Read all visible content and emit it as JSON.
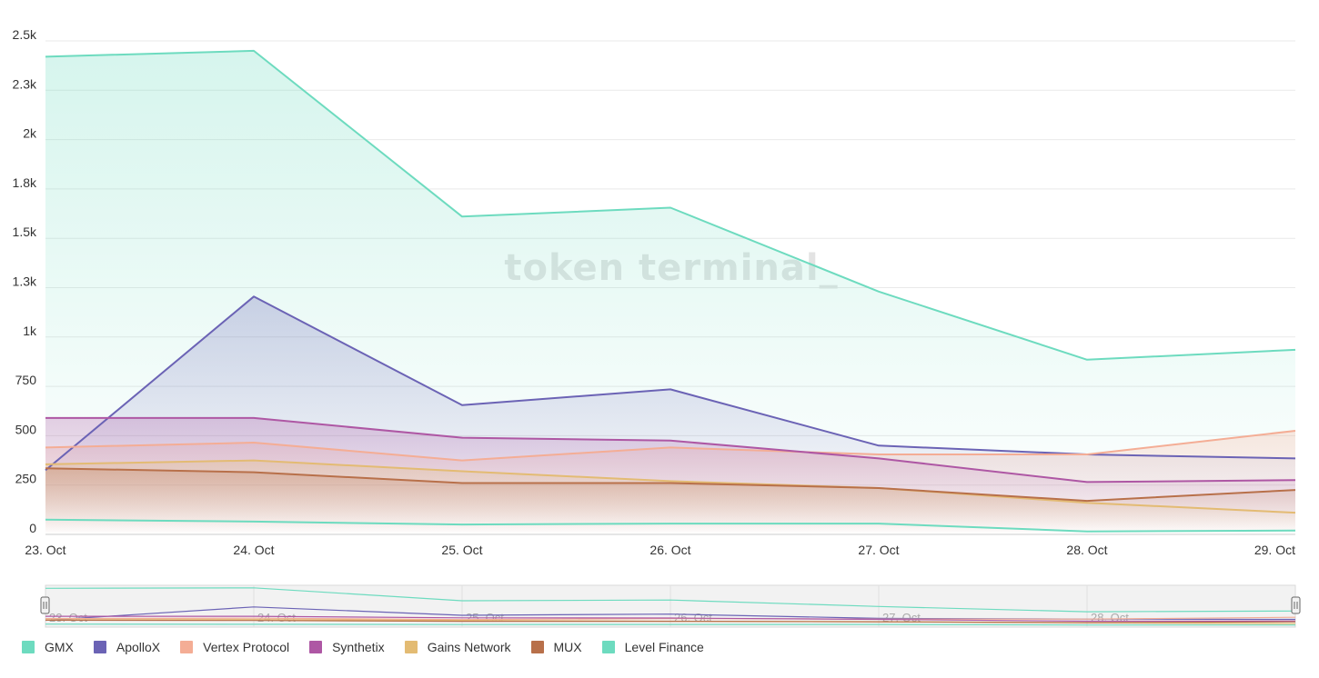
{
  "chart_data": {
    "type": "line",
    "categories": [
      "23. Oct",
      "24. Oct",
      "25. Oct",
      "26. Oct",
      "27. Oct",
      "28. Oct",
      "29. Oct"
    ],
    "y_ticks": [
      {
        "value": 0,
        "label": "0"
      },
      {
        "value": 250,
        "label": "250"
      },
      {
        "value": 500,
        "label": "500"
      },
      {
        "value": 750,
        "label": "750"
      },
      {
        "value": 1000,
        "label": "1k"
      },
      {
        "value": 1250,
        "label": "1.3k"
      },
      {
        "value": 1500,
        "label": "1.5k"
      },
      {
        "value": 1750,
        "label": "1.8k"
      },
      {
        "value": 2000,
        "label": "2k"
      },
      {
        "value": 2250,
        "label": "2.3k"
      },
      {
        "value": 2500,
        "label": "2.5k"
      }
    ],
    "ylim": [
      0,
      2500
    ],
    "grid": true,
    "legend_position": "bottom-left",
    "watermark": "token terminal_",
    "series": [
      {
        "name": "GMX",
        "color": "#6ddbbf",
        "fill": true,
        "values": [
          2420,
          2450,
          1610,
          1655,
          1230,
          885,
          935
        ]
      },
      {
        "name": "ApolloX",
        "color": "#6b63b5",
        "fill": true,
        "values": [
          325,
          1205,
          655,
          735,
          450,
          405,
          385
        ]
      },
      {
        "name": "Vertex Protocol",
        "color": "#f4ad95",
        "fill": true,
        "values": [
          440,
          465,
          375,
          440,
          405,
          405,
          525
        ]
      },
      {
        "name": "Synthetix",
        "color": "#ae57a4",
        "fill": true,
        "values": [
          590,
          590,
          490,
          475,
          385,
          265,
          275
        ]
      },
      {
        "name": "Gains Network",
        "color": "#e3bb73",
        "fill": true,
        "values": [
          355,
          375,
          320,
          270,
          235,
          160,
          110
        ]
      },
      {
        "name": "MUX",
        "color": "#b8704a",
        "fill": true,
        "values": [
          335,
          315,
          260,
          260,
          235,
          170,
          225
        ]
      },
      {
        "name": "Level Finance",
        "color": "#6ddbbf",
        "fill": false,
        "values": [
          75,
          65,
          50,
          55,
          55,
          15,
          20
        ]
      }
    ]
  }
}
